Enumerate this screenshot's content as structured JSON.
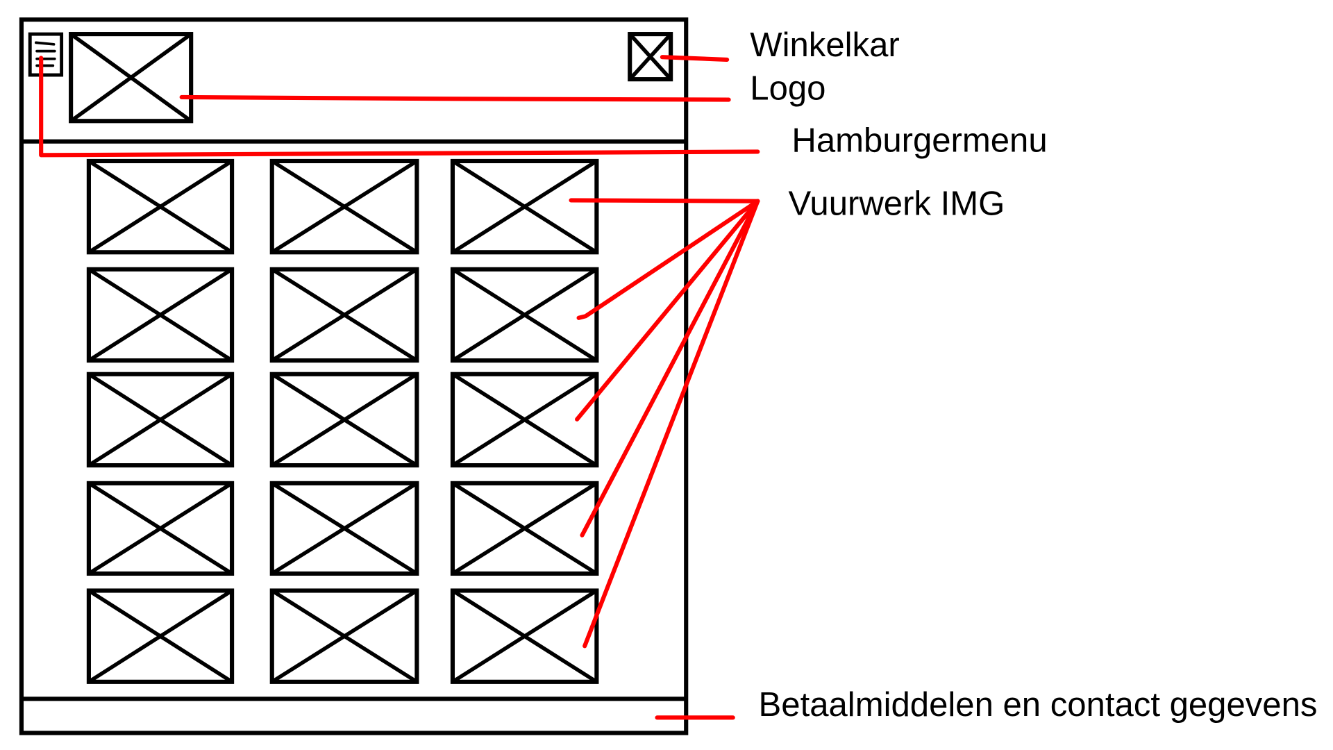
{
  "annotations": {
    "cart": "Winkelkar",
    "logo": "Logo",
    "hamburger": "Hamburgermenu",
    "images": "Vuurwerk IMG",
    "footer": "Betaalmiddelen en contact gegevens"
  },
  "icons": {
    "menu": "hamburger-icon",
    "logo": "image-placeholder-icon",
    "cart": "image-placeholder-icon",
    "product": "image-placeholder-icon"
  },
  "colors": {
    "ink": "#000000",
    "annotation": "#ff0000",
    "background": "#ffffff"
  }
}
